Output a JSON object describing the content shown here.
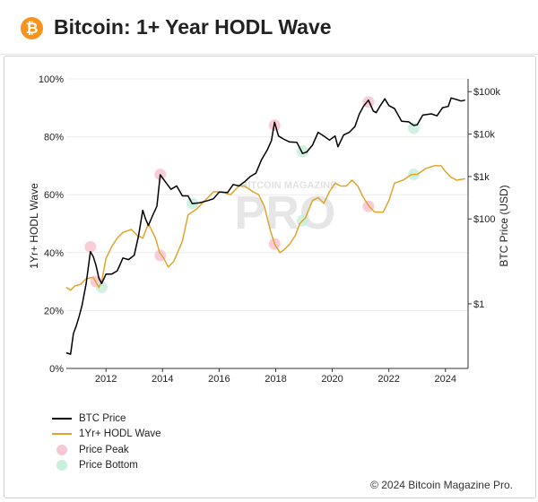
{
  "header": {
    "logo_glyph": "₿",
    "title": "Bitcoin: 1+ Year HODL Wave"
  },
  "watermark": {
    "small": "BITCOIN MAGAZINE",
    "big": "PRO"
  },
  "copyright": "© 2024 Bitcoin Magazine Pro.",
  "colors": {
    "btc_line": "#000000",
    "hodl_line": "#e1a42b",
    "peak": "#f7c8d3",
    "bottom": "#c9f0df"
  },
  "legend": [
    {
      "label": "BTC Price"
    },
    {
      "label": "1Yr+ HODL Wave"
    },
    {
      "label": "Price Peak"
    },
    {
      "label": "Price Bottom"
    }
  ],
  "chart_data": {
    "type": "line",
    "title": "Bitcoin: 1+ Year HODL Wave",
    "xlabel": "",
    "ylabel": "1Yr+ HODL Wave",
    "y2label": "BTC Price (USD)",
    "x_ticks": [
      "2012",
      "2014",
      "2016",
      "2018",
      "2020",
      "2022",
      "2024"
    ],
    "y_ticks": [
      "0%",
      "20%",
      "40%",
      "60%",
      "80%",
      "100%"
    ],
    "y2_ticks": [
      "$1",
      "$100",
      "$1k",
      "$10k",
      "$100k"
    ],
    "xlim": [
      2010.6,
      2024.8
    ],
    "ylim": [
      0,
      100
    ],
    "y2_scale": "log",
    "y2lim": [
      0.03,
      200000
    ],
    "grid": true,
    "legend_position": "bottom-left",
    "series": [
      {
        "name": "BTC Price",
        "axis": "right",
        "points": [
          [
            2010.6,
            0.07
          ],
          [
            2010.75,
            0.065
          ],
          [
            2010.85,
            0.2
          ],
          [
            2010.95,
            0.3
          ],
          [
            2011.05,
            0.5
          ],
          [
            2011.15,
            0.9
          ],
          [
            2011.3,
            3
          ],
          [
            2011.45,
            17
          ],
          [
            2011.55,
            13
          ],
          [
            2011.65,
            8
          ],
          [
            2011.75,
            4
          ],
          [
            2011.85,
            3
          ],
          [
            2012.0,
            5
          ],
          [
            2012.2,
            5
          ],
          [
            2012.4,
            6
          ],
          [
            2012.6,
            12
          ],
          [
            2012.8,
            11
          ],
          [
            2013.0,
            14
          ],
          [
            2013.15,
            40
          ],
          [
            2013.3,
            160
          ],
          [
            2013.4,
            100
          ],
          [
            2013.5,
            70
          ],
          [
            2013.65,
            120
          ],
          [
            2013.8,
            200
          ],
          [
            2013.92,
            1100
          ],
          [
            2014.1,
            750
          ],
          [
            2014.3,
            500
          ],
          [
            2014.5,
            600
          ],
          [
            2014.7,
            350
          ],
          [
            2014.9,
            350
          ],
          [
            2015.05,
            230
          ],
          [
            2015.3,
            240
          ],
          [
            2015.6,
            270
          ],
          [
            2015.8,
            300
          ],
          [
            2016.0,
            430
          ],
          [
            2016.3,
            420
          ],
          [
            2016.5,
            650
          ],
          [
            2016.7,
            600
          ],
          [
            2016.9,
            750
          ],
          [
            2017.1,
            1000
          ],
          [
            2017.3,
            1200
          ],
          [
            2017.5,
            2500
          ],
          [
            2017.7,
            4200
          ],
          [
            2017.85,
            7000
          ],
          [
            2017.96,
            19000
          ],
          [
            2018.1,
            9000
          ],
          [
            2018.3,
            7500
          ],
          [
            2018.5,
            6500
          ],
          [
            2018.75,
            6400
          ],
          [
            2018.95,
            3500
          ],
          [
            2019.1,
            3800
          ],
          [
            2019.3,
            5500
          ],
          [
            2019.5,
            11000
          ],
          [
            2019.7,
            9000
          ],
          [
            2019.9,
            7200
          ],
          [
            2020.1,
            9000
          ],
          [
            2020.2,
            5000
          ],
          [
            2020.4,
            9500
          ],
          [
            2020.6,
            11000
          ],
          [
            2020.8,
            15000
          ],
          [
            2020.95,
            29000
          ],
          [
            2021.1,
            45000
          ],
          [
            2021.28,
            63000
          ],
          [
            2021.45,
            35000
          ],
          [
            2021.55,
            32000
          ],
          [
            2021.7,
            47000
          ],
          [
            2021.86,
            68000
          ],
          [
            2022.0,
            47000
          ],
          [
            2022.2,
            40000
          ],
          [
            2022.45,
            20000
          ],
          [
            2022.7,
            19500
          ],
          [
            2022.88,
            16000
          ],
          [
            2023.0,
            16500
          ],
          [
            2023.2,
            28000
          ],
          [
            2023.5,
            30000
          ],
          [
            2023.7,
            27000
          ],
          [
            2023.9,
            42000
          ],
          [
            2024.1,
            45000
          ],
          [
            2024.2,
            71000
          ],
          [
            2024.4,
            65000
          ],
          [
            2024.55,
            60000
          ],
          [
            2024.7,
            63000
          ]
        ]
      },
      {
        "name": "1Yr+ HODL Wave",
        "axis": "left",
        "points": [
          [
            2010.6,
            28
          ],
          [
            2010.75,
            27
          ],
          [
            2010.9,
            28.5
          ],
          [
            2011.1,
            29
          ],
          [
            2011.3,
            31
          ],
          [
            2011.55,
            31.5
          ],
          [
            2011.75,
            28
          ],
          [
            2011.85,
            30
          ],
          [
            2012.0,
            38
          ],
          [
            2012.2,
            42
          ],
          [
            2012.4,
            45
          ],
          [
            2012.6,
            47
          ],
          [
            2012.9,
            48
          ],
          [
            2013.1,
            46
          ],
          [
            2013.3,
            45
          ],
          [
            2013.5,
            50
          ],
          [
            2013.75,
            45
          ],
          [
            2013.9,
            40
          ],
          [
            2014.05,
            38
          ],
          [
            2014.2,
            35
          ],
          [
            2014.4,
            37
          ],
          [
            2014.7,
            44
          ],
          [
            2014.9,
            53
          ],
          [
            2015.2,
            55
          ],
          [
            2015.5,
            58
          ],
          [
            2015.8,
            61
          ],
          [
            2016.1,
            61
          ],
          [
            2016.4,
            60
          ],
          [
            2016.7,
            63
          ],
          [
            2016.9,
            63
          ],
          [
            2017.2,
            61
          ],
          [
            2017.4,
            60
          ],
          [
            2017.6,
            56
          ],
          [
            2017.8,
            48
          ],
          [
            2017.96,
            43
          ],
          [
            2018.15,
            40
          ],
          [
            2018.3,
            41
          ],
          [
            2018.5,
            43
          ],
          [
            2018.7,
            46
          ],
          [
            2018.85,
            50
          ],
          [
            2019.05,
            52
          ],
          [
            2019.3,
            58
          ],
          [
            2019.5,
            59
          ],
          [
            2019.7,
            57
          ],
          [
            2019.9,
            61
          ],
          [
            2020.1,
            64
          ],
          [
            2020.3,
            63
          ],
          [
            2020.5,
            63
          ],
          [
            2020.7,
            65
          ],
          [
            2020.9,
            63
          ],
          [
            2021.1,
            59
          ],
          [
            2021.3,
            56
          ],
          [
            2021.5,
            54
          ],
          [
            2021.8,
            54
          ],
          [
            2022.0,
            58
          ],
          [
            2022.2,
            64
          ],
          [
            2022.5,
            65
          ],
          [
            2022.8,
            67
          ],
          [
            2023.0,
            67
          ],
          [
            2023.3,
            69
          ],
          [
            2023.6,
            70
          ],
          [
            2023.85,
            70
          ],
          [
            2024.0,
            68
          ],
          [
            2024.2,
            66
          ],
          [
            2024.4,
            65
          ],
          [
            2024.7,
            65.5
          ]
        ]
      }
    ],
    "price_peaks": [
      {
        "x": 2011.45,
        "y": 42
      },
      {
        "x": 2011.65,
        "y": 30
      },
      {
        "x": 2013.92,
        "y": 67
      },
      {
        "x": 2013.92,
        "y": 39
      },
      {
        "x": 2017.96,
        "y": 84
      },
      {
        "x": 2017.96,
        "y": 43
      },
      {
        "x": 2021.28,
        "y": 92
      },
      {
        "x": 2021.28,
        "y": 56
      }
    ],
    "price_bottoms": [
      {
        "x": 2011.85,
        "y": 28
      },
      {
        "x": 2015.05,
        "y": 57
      },
      {
        "x": 2018.95,
        "y": 75
      },
      {
        "x": 2018.95,
        "y": 51
      },
      {
        "x": 2022.88,
        "y": 83
      },
      {
        "x": 2022.88,
        "y": 67
      }
    ]
  }
}
